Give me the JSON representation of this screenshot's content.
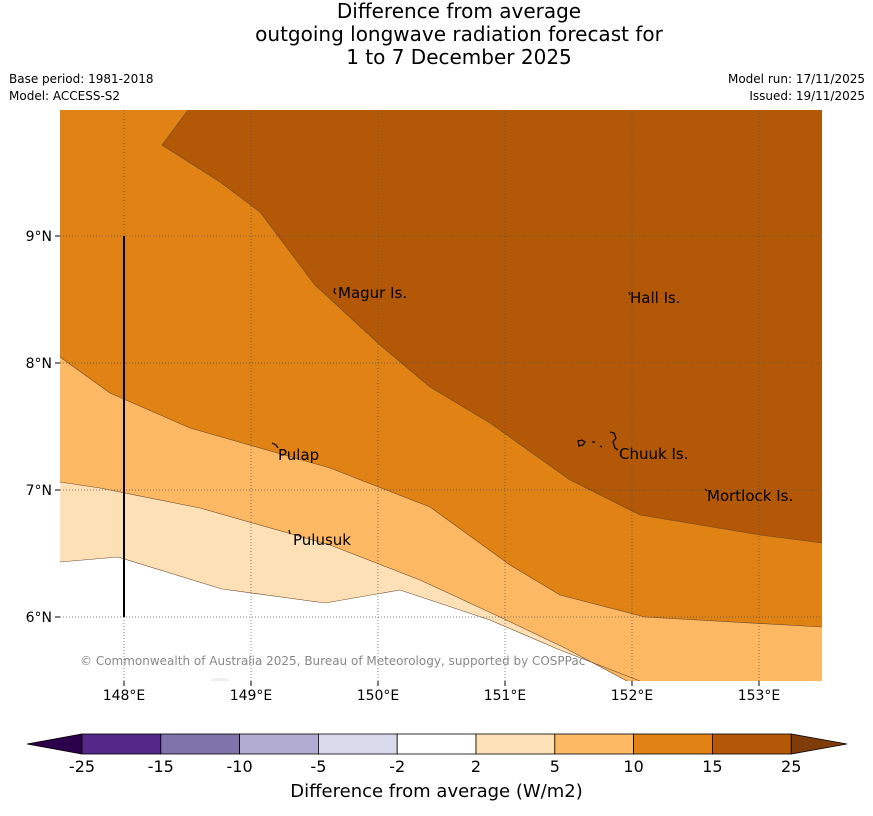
{
  "title": {
    "line1": "Difference from average",
    "line2": "outgoing longwave radiation forecast for",
    "line3": "1 to 7 December 2025"
  },
  "meta": {
    "base_period": "Base period: 1981-2018",
    "model": "Model: ACCESS-S2",
    "model_run": "Model run: 17/11/2025",
    "issued": "Issued: 19/11/2025"
  },
  "map": {
    "lon_labels": [
      "148°E",
      "149°E",
      "150°E",
      "151°E",
      "152°E",
      "153°E"
    ],
    "lat_labels": [
      "9°N",
      "8°N",
      "7°N",
      "6°N"
    ],
    "places": [
      "Magur Is.",
      "Hall Is.",
      "Pulap",
      "Chuuk Is.",
      "Mortlock Is.",
      "Pulusuk"
    ],
    "copyright": "© Commonwealth of Australia 2025, Bureau of Meteorology, supported by COSPPac"
  },
  "colorbar": {
    "ticks": [
      "-25",
      "-15",
      "-10",
      "-5",
      "-2",
      "2",
      "5",
      "10",
      "15",
      "25"
    ],
    "colors": [
      "#542788",
      "#8073ac",
      "#b2abd2",
      "#d8daeb",
      "#ffffff",
      "#fee0b6",
      "#fdb863",
      "#e08214",
      "#b35806"
    ],
    "under_color": "#2d004b",
    "over_color": "#7f3b08",
    "label": "Difference from average (W/m2)"
  }
}
